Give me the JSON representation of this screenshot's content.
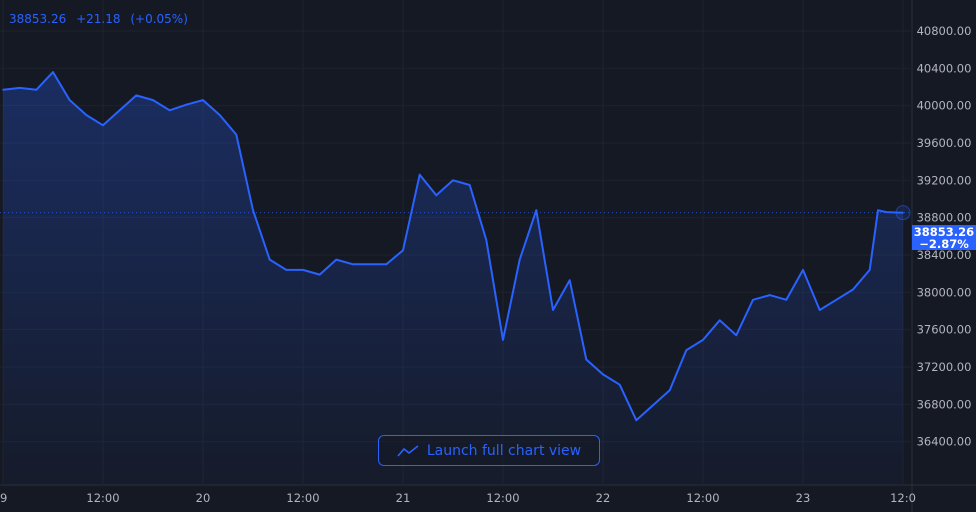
{
  "header": {
    "price": "38853.26",
    "change": "+21.18",
    "change_pct": "(+0.05%)"
  },
  "price_label": {
    "price": "38853.26",
    "change_pct": "−2.87%"
  },
  "launch_button": {
    "label": "Launch full chart view",
    "icon": "chart-line-icon"
  },
  "colors": {
    "line": "#2962ff",
    "background": "#151924",
    "text": "#b2b5be"
  },
  "chart_data": {
    "type": "area",
    "grid": true,
    "last_value": 38853.26,
    "ylim": [
      36200,
      41000
    ],
    "y_ticks": [
      "40800.00",
      "40400.00",
      "40000.00",
      "39600.00",
      "39200.00",
      "38800.00",
      "38400.00",
      "38000.00",
      "37600.00",
      "37200.00",
      "36800.00",
      "36400.00"
    ],
    "x_ticks": [
      "9",
      "12:00",
      "20",
      "12:00",
      "21",
      "12:00",
      "22",
      "12:00",
      "23",
      "12:0"
    ],
    "series": [
      {
        "points": [
          [
            "19 00:00",
            40170
          ],
          [
            "19 02:00",
            40190
          ],
          [
            "19 04:00",
            40170
          ],
          [
            "19 06:00",
            40360
          ],
          [
            "19 08:00",
            40060
          ],
          [
            "19 10:00",
            39900
          ],
          [
            "19 12:00",
            39790
          ],
          [
            "19 14:00",
            39950
          ],
          [
            "19 16:00",
            40110
          ],
          [
            "19 18:00",
            40060
          ],
          [
            "19 20:00",
            39950
          ],
          [
            "19 22:00",
            40010
          ],
          [
            "20 00:00",
            40060
          ],
          [
            "20 02:00",
            39900
          ],
          [
            "20 04:00",
            39690
          ],
          [
            "20 06:00",
            38880
          ],
          [
            "20 08:00",
            38350
          ],
          [
            "20 10:00",
            38240
          ],
          [
            "20 12:00",
            38240
          ],
          [
            "20 14:00",
            38190
          ],
          [
            "20 16:00",
            38350
          ],
          [
            "20 18:00",
            38300
          ],
          [
            "20 20:00",
            38300
          ],
          [
            "20 22:00",
            38300
          ],
          [
            "21 00:00",
            38450
          ],
          [
            "21 02:00",
            39260
          ],
          [
            "21 04:00",
            39040
          ],
          [
            "21 06:00",
            39200
          ],
          [
            "21 08:00",
            39150
          ],
          [
            "21 10:00",
            38560
          ],
          [
            "21 12:00",
            37490
          ],
          [
            "21 14:00",
            38350
          ],
          [
            "21 16:00",
            38880
          ],
          [
            "21 18:00",
            37810
          ],
          [
            "21 20:00",
            38130
          ],
          [
            "21 22:00",
            37280
          ],
          [
            "22 00:00",
            37120
          ],
          [
            "22 02:00",
            37010
          ],
          [
            "22 04:00",
            36630
          ],
          [
            "22 06:00",
            36790
          ],
          [
            "22 08:00",
            36950
          ],
          [
            "22 10:00",
            37380
          ],
          [
            "22 12:00",
            37490
          ],
          [
            "22 14:00",
            37700
          ],
          [
            "22 16:00",
            37540
          ],
          [
            "22 18:00",
            37920
          ],
          [
            "22 20:00",
            37970
          ],
          [
            "22 22:00",
            37920
          ],
          [
            "23 00:00",
            38240
          ],
          [
            "23 02:00",
            37810
          ],
          [
            "23 04:00",
            37920
          ],
          [
            "23 06:00",
            38030
          ],
          [
            "23 08:00",
            38240
          ],
          [
            "23 09:00",
            38880
          ],
          [
            "23 10:00",
            38860
          ],
          [
            "23 12:00",
            38853.26
          ]
        ]
      }
    ]
  }
}
